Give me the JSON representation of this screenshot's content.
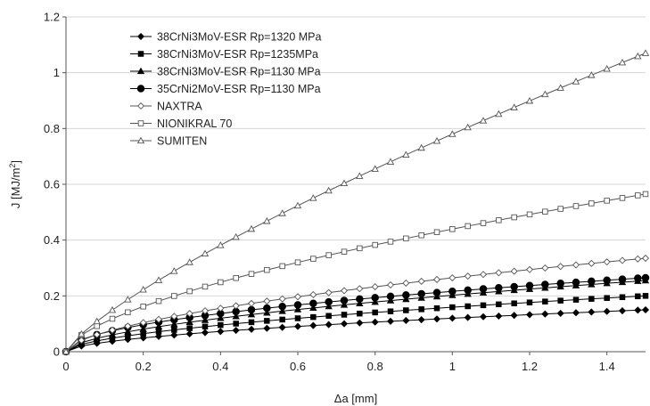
{
  "chart_data": {
    "type": "line",
    "xlabel": "Δa [mm]",
    "ylabel": "J [MJ/m",
    "ylabel_sup": "2",
    "ylabel_close": "]",
    "xlim": [
      0,
      1.5
    ],
    "ylim": [
      0,
      1.2
    ],
    "xticks": [
      "0",
      "0.2",
      "0.4",
      "0.6",
      "0.8",
      "1",
      "1.2",
      "1.4"
    ],
    "xtick_values": [
      0,
      0.2,
      0.4,
      0.6,
      0.8,
      1.0,
      1.2,
      1.4
    ],
    "yticks": [
      "0",
      "0.2",
      "0.4",
      "0.6",
      "0.8",
      "1",
      "1.2"
    ],
    "ytick_values": [
      0,
      0.2,
      0.4,
      0.6,
      0.8,
      1.0,
      1.2
    ],
    "grid": "horizontal",
    "legend_position": "top-left",
    "series": [
      {
        "name": "38CrNi3MoV-ESR Rp=1320 MPa",
        "marker": "diamond-filled",
        "color": "#000000",
        "end_value": 0.15,
        "exponent": 0.55
      },
      {
        "name": "38CrNi3MoV-ESR Rp=1235MPa",
        "marker": "square-filled",
        "color": "#000000",
        "end_value": 0.2,
        "exponent": 0.56
      },
      {
        "name": "38CrNi3MoV-ESR Rp=1130 MPa",
        "marker": "triangle-filled",
        "color": "#000000",
        "end_value": 0.255,
        "exponent": 0.57
      },
      {
        "name": "35CrNi2MoV-ESR Rp=1130 MPa",
        "marker": "circle-filled",
        "color": "#000000",
        "end_value": 0.265,
        "exponent": 0.5
      },
      {
        "name": "NAXTRA",
        "marker": "diamond-open",
        "color": "#555555",
        "end_value": 0.335,
        "exponent": 0.58
      },
      {
        "name": "NIONIKRAL 70",
        "marker": "square-open",
        "color": "#555555",
        "end_value": 0.565,
        "exponent": 0.62
      },
      {
        "name": "SUMITEN",
        "marker": "triangle-open",
        "color": "#555555",
        "end_value": 1.07,
        "exponent": 0.78
      }
    ],
    "x_start": 0,
    "x_end": 1.5,
    "x_step": 0.04
  }
}
